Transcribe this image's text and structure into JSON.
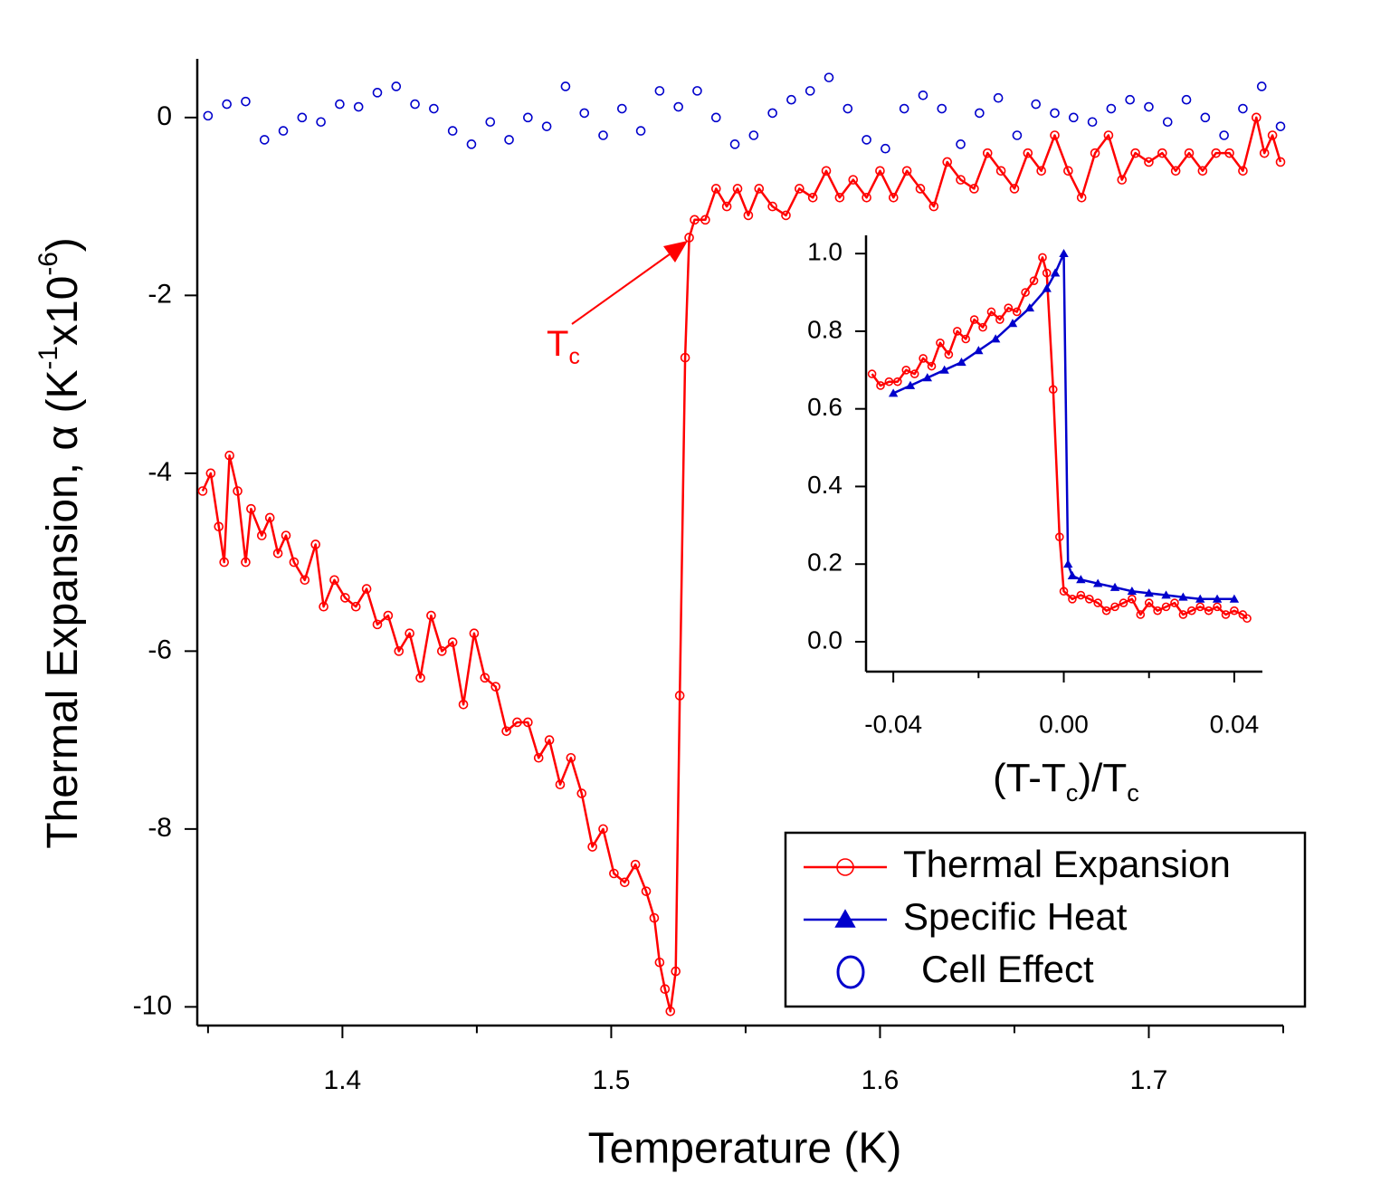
{
  "chart_data": [
    {
      "type": "line",
      "xlabel": "Temperature (K)",
      "ylabel": [
        {
          "text": "Thermal Expansion, α (K"
        },
        {
          "text": "-1",
          "sup": true
        },
        {
          "text": "x10"
        },
        {
          "text": "-6",
          "sup": true
        },
        {
          "text": ")"
        }
      ],
      "annotation": [
        {
          "text": "T"
        },
        {
          "text": "c",
          "sub": true
        }
      ],
      "annotation_color": "#ff0000",
      "xlim": [
        1.346,
        1.75
      ],
      "ylim": [
        -10.21,
        0.66
      ],
      "xticks": [
        1.4,
        1.5,
        1.6,
        1.7
      ],
      "xminorticks": [
        1.35,
        1.45,
        1.55,
        1.65,
        1.75
      ],
      "yticks": [
        0,
        -2,
        -4,
        -6,
        -8,
        -10
      ],
      "legend": {
        "corner": "bottom-right"
      },
      "series": [
        {
          "name": "Thermal Expansion",
          "color": "#ff0000",
          "mode": "lines+markers",
          "marker": "circle",
          "x": [
            1.348,
            1.351,
            1.354,
            1.356,
            1.358,
            1.361,
            1.364,
            1.366,
            1.37,
            1.373,
            1.376,
            1.379,
            1.382,
            1.386,
            1.39,
            1.393,
            1.397,
            1.401,
            1.405,
            1.409,
            1.413,
            1.417,
            1.421,
            1.425,
            1.429,
            1.433,
            1.437,
            1.441,
            1.445,
            1.449,
            1.453,
            1.457,
            1.461,
            1.465,
            1.469,
            1.473,
            1.477,
            1.481,
            1.485,
            1.489,
            1.493,
            1.497,
            1.501,
            1.505,
            1.509,
            1.513,
            1.516,
            1.518,
            1.52,
            1.522,
            1.524,
            1.5255,
            1.5275,
            1.529,
            1.531,
            1.535,
            1.539,
            1.543,
            1.547,
            1.551,
            1.555,
            1.56,
            1.565,
            1.57,
            1.575,
            1.58,
            1.585,
            1.59,
            1.595,
            1.6,
            1.605,
            1.61,
            1.615,
            1.62,
            1.625,
            1.63,
            1.635,
            1.64,
            1.645,
            1.65,
            1.655,
            1.66,
            1.665,
            1.67,
            1.675,
            1.68,
            1.685,
            1.69,
            1.695,
            1.7,
            1.705,
            1.71,
            1.715,
            1.72,
            1.725,
            1.73,
            1.735,
            1.74,
            1.743,
            1.746,
            1.749
          ],
          "values": [
            -4.2,
            -4.0,
            -4.6,
            -5.0,
            -3.8,
            -4.2,
            -5.0,
            -4.4,
            -4.7,
            -4.5,
            -4.9,
            -4.7,
            -5.0,
            -5.2,
            -4.8,
            -5.5,
            -5.2,
            -5.4,
            -5.5,
            -5.3,
            -5.7,
            -5.6,
            -6.0,
            -5.8,
            -6.3,
            -5.6,
            -6.0,
            -5.9,
            -6.6,
            -5.8,
            -6.3,
            -6.4,
            -6.9,
            -6.8,
            -6.8,
            -7.2,
            -7.0,
            -7.5,
            -7.2,
            -7.6,
            -8.2,
            -8.0,
            -8.5,
            -8.6,
            -8.4,
            -8.7,
            -9.0,
            -9.5,
            -9.8,
            -10.05,
            -9.6,
            -6.5,
            -2.7,
            -1.35,
            -1.15,
            -1.15,
            -0.8,
            -1.0,
            -0.8,
            -1.1,
            -0.8,
            -1.0,
            -1.1,
            -0.8,
            -0.9,
            -0.6,
            -0.9,
            -0.7,
            -0.9,
            -0.6,
            -0.9,
            -0.6,
            -0.8,
            -1.0,
            -0.5,
            -0.7,
            -0.8,
            -0.4,
            -0.6,
            -0.8,
            -0.4,
            -0.6,
            -0.2,
            -0.6,
            -0.9,
            -0.4,
            -0.2,
            -0.7,
            -0.4,
            -0.5,
            -0.4,
            -0.6,
            -0.4,
            -0.6,
            -0.4,
            -0.4,
            -0.6,
            0.0,
            -0.4,
            -0.2,
            -0.5
          ]
        },
        {
          "name": "Cell Effect",
          "color": "#0000cc",
          "mode": "markers",
          "marker": "circle",
          "x": [
            1.35,
            1.357,
            1.364,
            1.371,
            1.378,
            1.385,
            1.392,
            1.399,
            1.406,
            1.413,
            1.42,
            1.427,
            1.434,
            1.441,
            1.448,
            1.455,
            1.462,
            1.469,
            1.476,
            1.483,
            1.49,
            1.497,
            1.504,
            1.511,
            1.518,
            1.525,
            1.532,
            1.539,
            1.546,
            1.553,
            1.56,
            1.567,
            1.574,
            1.581,
            1.588,
            1.595,
            1.602,
            1.609,
            1.616,
            1.623,
            1.63,
            1.637,
            1.644,
            1.651,
            1.658,
            1.665,
            1.672,
            1.679,
            1.686,
            1.693,
            1.7,
            1.707,
            1.714,
            1.721,
            1.728,
            1.735,
            1.742,
            1.749
          ],
          "values": [
            0.02,
            0.15,
            0.18,
            -0.25,
            -0.15,
            0.0,
            -0.05,
            0.15,
            0.12,
            0.28,
            0.35,
            0.15,
            0.1,
            -0.15,
            -0.3,
            -0.05,
            -0.25,
            0.0,
            -0.1,
            0.35,
            0.05,
            -0.2,
            0.1,
            -0.15,
            0.3,
            0.12,
            0.3,
            0.0,
            -0.3,
            -0.2,
            0.05,
            0.2,
            0.3,
            0.45,
            0.1,
            -0.25,
            -0.35,
            0.1,
            0.25,
            0.1,
            -0.3,
            0.05,
            0.22,
            -0.2,
            0.15,
            0.05,
            0.0,
            -0.05,
            0.1,
            0.2,
            0.12,
            -0.05,
            0.2,
            0.0,
            -0.2,
            0.1,
            0.35,
            -0.1
          ]
        }
      ]
    },
    {
      "type": "line",
      "xlabel": [
        {
          "text": "(T-T"
        },
        {
          "text": "c",
          "sub": true
        },
        {
          "text": ")/T"
        },
        {
          "text": "c",
          "sub": true
        }
      ],
      "xlim": [
        -0.0464,
        0.0466
      ],
      "ylim": [
        -0.077,
        1.047
      ],
      "xticks": [
        -0.04,
        {
          "value": 0,
          "label": "0.00"
        },
        0.04
      ],
      "xminorticks": [
        -0.02,
        0.02
      ],
      "yticks": [
        {
          "value": 0,
          "label": "0.0"
        },
        0.2,
        0.4,
        0.6,
        0.8,
        {
          "value": 1,
          "label": "1.0"
        }
      ],
      "series": [
        {
          "color": "#ff0000",
          "mode": "lines+markers",
          "marker": "circle",
          "x": [
            -0.045,
            -0.043,
            -0.041,
            -0.039,
            -0.037,
            -0.035,
            -0.033,
            -0.031,
            -0.029,
            -0.027,
            -0.025,
            -0.023,
            -0.021,
            -0.019,
            -0.017,
            -0.015,
            -0.013,
            -0.011,
            -0.009,
            -0.007,
            -0.005,
            -0.004,
            -0.0025,
            -0.001,
            0.0,
            0.002,
            0.004,
            0.006,
            0.008,
            0.01,
            0.012,
            0.014,
            0.016,
            0.018,
            0.02,
            0.022,
            0.024,
            0.026,
            0.028,
            0.03,
            0.032,
            0.034,
            0.036,
            0.038,
            0.04,
            0.042,
            0.043
          ],
          "values": [
            0.69,
            0.66,
            0.67,
            0.67,
            0.7,
            0.69,
            0.73,
            0.71,
            0.77,
            0.74,
            0.8,
            0.78,
            0.83,
            0.81,
            0.85,
            0.83,
            0.86,
            0.85,
            0.9,
            0.93,
            0.99,
            0.95,
            0.65,
            0.27,
            0.13,
            0.11,
            0.12,
            0.11,
            0.1,
            0.08,
            0.09,
            0.1,
            0.11,
            0.07,
            0.1,
            0.08,
            0.09,
            0.1,
            0.07,
            0.08,
            0.09,
            0.08,
            0.09,
            0.07,
            0.08,
            0.07,
            0.06
          ]
        },
        {
          "name": "Specific Heat",
          "color": "#0000cc",
          "mode": "lines+markers",
          "marker": "triangle",
          "x": [
            -0.04,
            -0.036,
            -0.032,
            -0.028,
            -0.024,
            -0.02,
            -0.016,
            -0.012,
            -0.008,
            -0.004,
            -0.002,
            0.0,
            0.001,
            0.002,
            0.004,
            0.008,
            0.012,
            0.016,
            0.02,
            0.024,
            0.028,
            0.032,
            0.036,
            0.04
          ],
          "values": [
            0.64,
            0.66,
            0.68,
            0.7,
            0.72,
            0.75,
            0.78,
            0.82,
            0.86,
            0.91,
            0.95,
            1.0,
            0.2,
            0.17,
            0.16,
            0.15,
            0.14,
            0.13,
            0.125,
            0.12,
            0.115,
            0.11,
            0.11,
            0.11
          ]
        }
      ]
    }
  ]
}
